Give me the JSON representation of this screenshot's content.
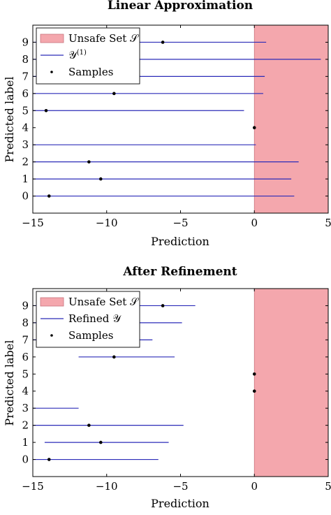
{
  "chart_data": [
    {
      "type": "range",
      "title": "Linear Approximation",
      "xlabel": "Prediction",
      "ylabel": "Predicted label",
      "xlim": [
        -15,
        5
      ],
      "ylim": [
        -1,
        10
      ],
      "xticks": [
        -15,
        -10,
        -5,
        0,
        5
      ],
      "xtick_labels": [
        "−15",
        "−10",
        "−5",
        "0",
        "5"
      ],
      "yticks": [
        0,
        1,
        2,
        3,
        4,
        5,
        6,
        7,
        8,
        9
      ],
      "ytick_labels": [
        "0",
        "1",
        "2",
        "3",
        "4",
        "5",
        "6",
        "7",
        "8",
        "9"
      ],
      "unsafe_region": [
        0,
        5
      ],
      "legend": {
        "position": "top-left",
        "entries": [
          {
            "kind": "region",
            "label": "Unsafe Set 𝒮"
          },
          {
            "kind": "line",
            "label": "𝒴",
            "sup": "(1)"
          },
          {
            "kind": "point",
            "label": "Samples"
          }
        ]
      },
      "intervals": [
        {
          "label": 0,
          "low": -15,
          "high": 2.7
        },
        {
          "label": 1,
          "low": -15,
          "high": 2.5
        },
        {
          "label": 2,
          "low": -15,
          "high": 3.0
        },
        {
          "label": 3,
          "low": -15,
          "high": 0.1
        },
        {
          "label": 4,
          "low": -15,
          "high": -15
        },
        {
          "label": 5,
          "low": -15,
          "high": -0.7
        },
        {
          "label": 6,
          "low": -15,
          "high": 0.6
        },
        {
          "label": 7,
          "low": -15,
          "high": 0.7
        },
        {
          "label": 8,
          "low": -15,
          "high": 4.5
        },
        {
          "label": 9,
          "low": -15,
          "high": 0.8
        }
      ],
      "samples": [
        {
          "label": 0,
          "x": -13.9
        },
        {
          "label": 1,
          "x": -10.4
        },
        {
          "label": 2,
          "x": -11.2
        },
        {
          "label": 4,
          "x": 0.0
        },
        {
          "label": 5,
          "x": -14.1
        },
        {
          "label": 6,
          "x": -9.5
        },
        {
          "label": 9,
          "x": -6.2
        }
      ],
      "colors": {
        "line": "#2b2bb8",
        "unsafe_fill": "#f4a7ad",
        "sample": "#000000"
      }
    },
    {
      "type": "range",
      "title": "After Refinement",
      "xlabel": "Prediction",
      "ylabel": "Predicted label",
      "xlim": [
        -15,
        5
      ],
      "ylim": [
        -1,
        10
      ],
      "xticks": [
        -15,
        -10,
        -5,
        0,
        5
      ],
      "xtick_labels": [
        "−15",
        "−10",
        "−5",
        "0",
        "5"
      ],
      "yticks": [
        0,
        1,
        2,
        3,
        4,
        5,
        6,
        7,
        8,
        9
      ],
      "ytick_labels": [
        "0",
        "1",
        "2",
        "3",
        "4",
        "5",
        "6",
        "7",
        "8",
        "9"
      ],
      "unsafe_region": [
        0,
        5
      ],
      "legend": {
        "position": "top-left",
        "entries": [
          {
            "kind": "region",
            "label": "Unsafe Set 𝒮"
          },
          {
            "kind": "line",
            "label": "Refined 𝒴",
            "sup": ""
          },
          {
            "kind": "point",
            "label": "Samples"
          }
        ]
      },
      "intervals": [
        {
          "label": 0,
          "low": -15,
          "high": -6.5
        },
        {
          "label": 1,
          "low": -14.2,
          "high": -5.8
        },
        {
          "label": 2,
          "low": -15,
          "high": -4.8
        },
        {
          "label": 3,
          "low": -15,
          "high": -11.9
        },
        {
          "label": 6,
          "low": -11.9,
          "high": -5.4
        },
        {
          "label": 7,
          "low": -15,
          "high": -6.9
        },
        {
          "label": 8,
          "low": -15,
          "high": -4.9
        },
        {
          "label": 9,
          "low": -15,
          "high": -4.0
        }
      ],
      "samples": [
        {
          "label": 0,
          "x": -13.9
        },
        {
          "label": 1,
          "x": -10.4
        },
        {
          "label": 2,
          "x": -11.2
        },
        {
          "label": 4,
          "x": 0.0
        },
        {
          "label": 5,
          "x": 0.0
        },
        {
          "label": 6,
          "x": -9.5
        },
        {
          "label": 9,
          "x": -6.2
        }
      ],
      "colors": {
        "line": "#2b2bb8",
        "unsafe_fill": "#f4a7ad",
        "sample": "#000000"
      }
    }
  ]
}
